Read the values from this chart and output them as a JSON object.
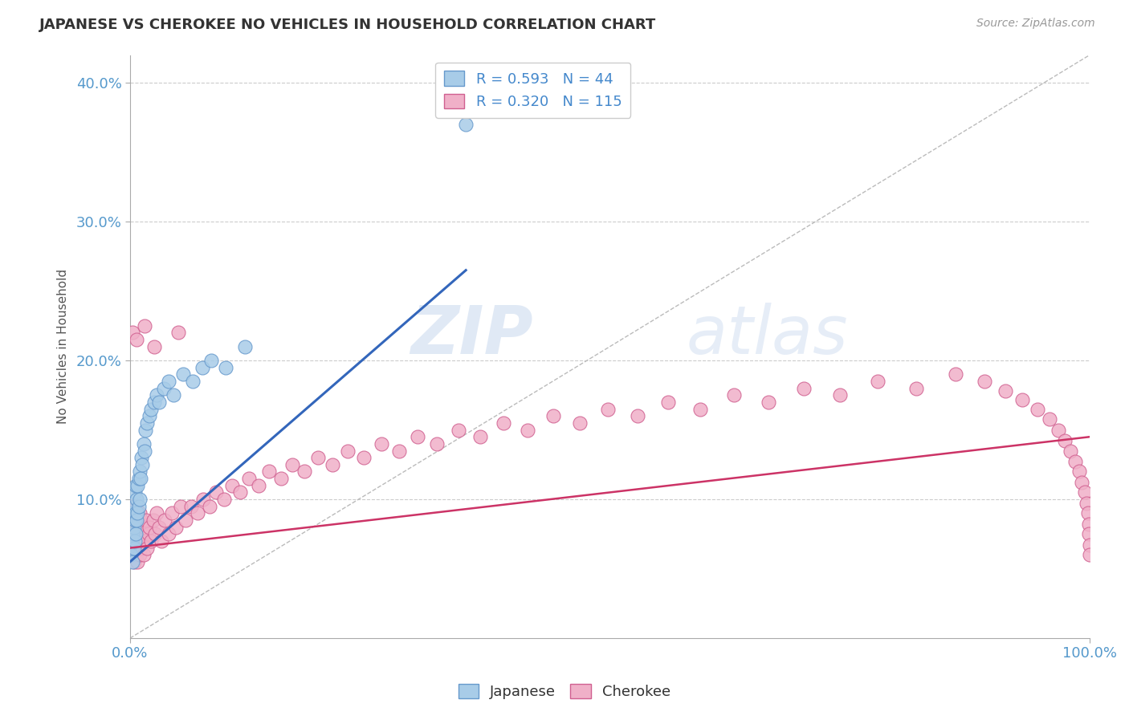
{
  "title": "JAPANESE VS CHEROKEE NO VEHICLES IN HOUSEHOLD CORRELATION CHART",
  "source_text": "Source: ZipAtlas.com",
  "ylabel": "No Vehicles in Household",
  "xlim": [
    0.0,
    1.0
  ],
  "ylim": [
    0.0,
    0.42
  ],
  "xtick_labels": [
    "0.0%",
    "100.0%"
  ],
  "ytick_labels": [
    "10.0%",
    "20.0%",
    "30.0%",
    "40.0%"
  ],
  "ytick_positions": [
    0.1,
    0.2,
    0.3,
    0.4
  ],
  "watermark_zip": "ZIP",
  "watermark_atlas": "atlas",
  "japanese_color": "#a8cce8",
  "japanese_edge_color": "#6699cc",
  "cherokee_color": "#f0b0c8",
  "cherokee_edge_color": "#d06090",
  "trend_japanese_color": "#3366bb",
  "trend_cherokee_color": "#cc3366",
  "trend_dashed_color": "#bbbbbb",
  "japanese_x": [
    0.001,
    0.002,
    0.002,
    0.003,
    0.003,
    0.004,
    0.004,
    0.004,
    0.005,
    0.005,
    0.005,
    0.006,
    0.006,
    0.006,
    0.007,
    0.007,
    0.008,
    0.008,
    0.009,
    0.009,
    0.01,
    0.01,
    0.011,
    0.012,
    0.013,
    0.014,
    0.015,
    0.016,
    0.018,
    0.02,
    0.022,
    0.025,
    0.028,
    0.03,
    0.035,
    0.04,
    0.045,
    0.055,
    0.065,
    0.075,
    0.085,
    0.1,
    0.12,
    0.35
  ],
  "japanese_y": [
    0.06,
    0.07,
    0.09,
    0.075,
    0.055,
    0.065,
    0.08,
    0.095,
    0.07,
    0.085,
    0.105,
    0.075,
    0.09,
    0.11,
    0.085,
    0.1,
    0.09,
    0.11,
    0.095,
    0.115,
    0.1,
    0.12,
    0.115,
    0.13,
    0.125,
    0.14,
    0.135,
    0.15,
    0.155,
    0.16,
    0.165,
    0.17,
    0.175,
    0.17,
    0.18,
    0.185,
    0.175,
    0.19,
    0.185,
    0.195,
    0.2,
    0.195,
    0.21,
    0.37
  ],
  "cherokee_x": [
    0.001,
    0.001,
    0.002,
    0.002,
    0.002,
    0.003,
    0.003,
    0.003,
    0.004,
    0.004,
    0.004,
    0.005,
    0.005,
    0.005,
    0.005,
    0.006,
    0.006,
    0.006,
    0.007,
    0.007,
    0.007,
    0.008,
    0.008,
    0.008,
    0.009,
    0.009,
    0.01,
    0.01,
    0.01,
    0.011,
    0.011,
    0.012,
    0.012,
    0.013,
    0.014,
    0.015,
    0.016,
    0.017,
    0.018,
    0.019,
    0.02,
    0.022,
    0.024,
    0.026,
    0.028,
    0.03,
    0.033,
    0.036,
    0.04,
    0.044,
    0.048,
    0.053,
    0.058,
    0.064,
    0.07,
    0.076,
    0.083,
    0.09,
    0.098,
    0.106,
    0.115,
    0.124,
    0.134,
    0.145,
    0.157,
    0.169,
    0.182,
    0.196,
    0.211,
    0.227,
    0.244,
    0.262,
    0.28,
    0.3,
    0.32,
    0.342,
    0.365,
    0.389,
    0.414,
    0.441,
    0.469,
    0.498,
    0.529,
    0.561,
    0.594,
    0.629,
    0.665,
    0.702,
    0.74,
    0.779,
    0.819,
    0.86,
    0.89,
    0.912,
    0.93,
    0.946,
    0.958,
    0.967,
    0.974,
    0.98,
    0.985,
    0.989,
    0.992,
    0.995,
    0.997,
    0.998,
    0.999,
    0.999,
    1.0,
    1.0,
    0.003,
    0.007,
    0.015,
    0.025,
    0.05
  ],
  "cherokee_y": [
    0.075,
    0.095,
    0.08,
    0.065,
    0.09,
    0.07,
    0.085,
    0.06,
    0.075,
    0.09,
    0.055,
    0.07,
    0.085,
    0.06,
    0.095,
    0.065,
    0.08,
    0.095,
    0.06,
    0.075,
    0.09,
    0.065,
    0.08,
    0.055,
    0.07,
    0.085,
    0.06,
    0.075,
    0.09,
    0.065,
    0.08,
    0.07,
    0.085,
    0.075,
    0.06,
    0.08,
    0.07,
    0.085,
    0.065,
    0.075,
    0.08,
    0.07,
    0.085,
    0.075,
    0.09,
    0.08,
    0.07,
    0.085,
    0.075,
    0.09,
    0.08,
    0.095,
    0.085,
    0.095,
    0.09,
    0.1,
    0.095,
    0.105,
    0.1,
    0.11,
    0.105,
    0.115,
    0.11,
    0.12,
    0.115,
    0.125,
    0.12,
    0.13,
    0.125,
    0.135,
    0.13,
    0.14,
    0.135,
    0.145,
    0.14,
    0.15,
    0.145,
    0.155,
    0.15,
    0.16,
    0.155,
    0.165,
    0.16,
    0.17,
    0.165,
    0.175,
    0.17,
    0.18,
    0.175,
    0.185,
    0.18,
    0.19,
    0.185,
    0.178,
    0.172,
    0.165,
    0.158,
    0.15,
    0.142,
    0.135,
    0.127,
    0.12,
    0.112,
    0.105,
    0.097,
    0.09,
    0.082,
    0.075,
    0.067,
    0.06,
    0.22,
    0.215,
    0.225,
    0.21,
    0.22
  ],
  "japanese_trend_x": [
    0.0,
    0.35
  ],
  "japanese_trend_y": [
    0.055,
    0.265
  ],
  "cherokee_trend_x": [
    0.0,
    1.0
  ],
  "cherokee_trend_y": [
    0.065,
    0.145
  ]
}
